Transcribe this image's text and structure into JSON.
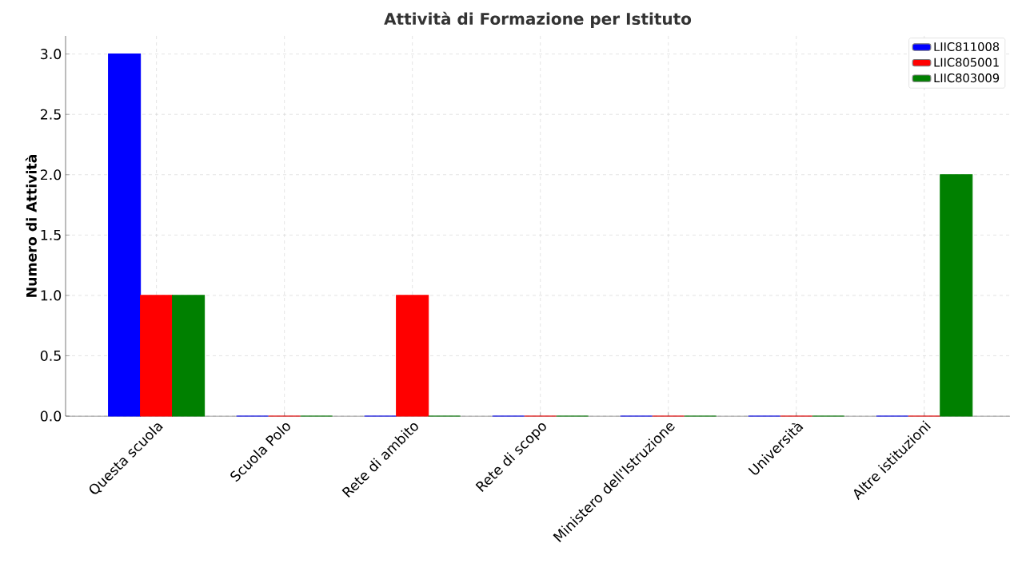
{
  "chart_data": {
    "type": "bar",
    "title": "Attività di Formazione per Istituto",
    "ylabel": "Numero di Attività",
    "categories": [
      "Questa scuola",
      "Scuola Polo",
      "Rete di ambito",
      "Rete di scopo",
      "Ministero dell'Istruzione",
      "Università",
      "Altre istituzioni"
    ],
    "series": [
      {
        "name": "LIIC811008",
        "color": "#0000ff",
        "values": [
          3,
          0,
          0,
          0,
          0,
          0,
          0
        ]
      },
      {
        "name": "LIIC805001",
        "color": "#ff0000",
        "values": [
          1,
          0,
          1,
          0,
          0,
          0,
          0
        ]
      },
      {
        "name": "LIIC803009",
        "color": "#008000",
        "values": [
          1,
          0,
          0,
          0,
          0,
          0,
          2
        ]
      }
    ],
    "ylim": [
      0,
      3.15
    ],
    "yticks": [
      {
        "value": 0,
        "label": "0.0"
      },
      0.5,
      {
        "value": 1,
        "label": "1.0"
      },
      1.5,
      {
        "value": 2,
        "label": "2.0"
      },
      2.5,
      {
        "value": 3,
        "label": "3.0"
      }
    ],
    "grid": true,
    "legend": "top right"
  }
}
